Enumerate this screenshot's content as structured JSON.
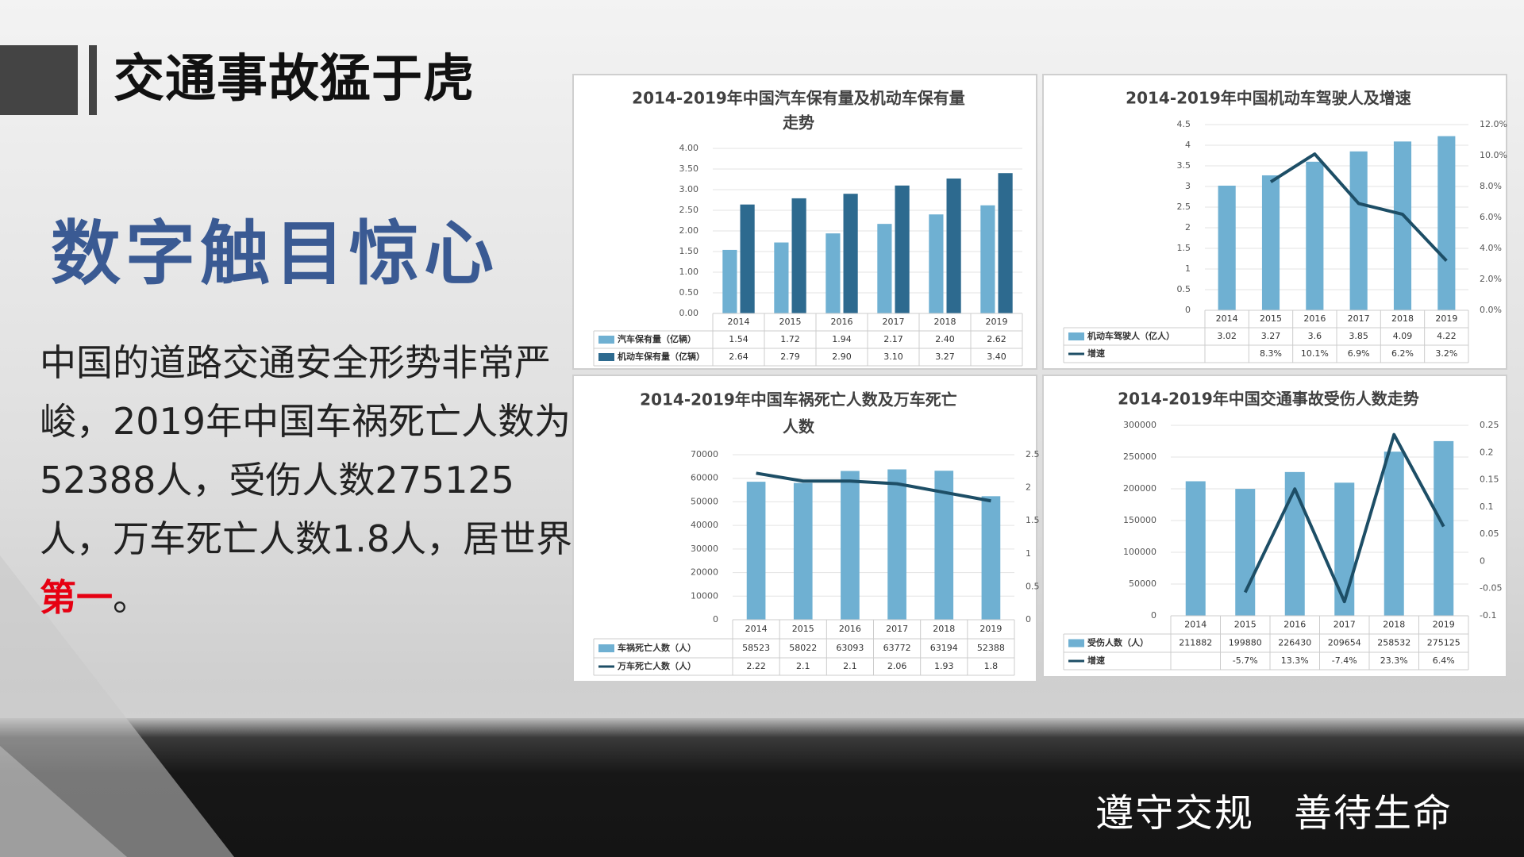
{
  "slide": {
    "title": "交通事故猛于虎",
    "subtitle": "数字触目惊心",
    "body_before": "中国的道路交通安全形势非常严峻，2019年中国车祸死亡人数为52388人，受伤人数275125人，万车死亡人数1.8人，居世界",
    "body_highlight": "第一",
    "body_after": "。",
    "footer": "遵守交规　善待生命"
  },
  "colors": {
    "bar_light": "#6fb0d2",
    "bar_dark": "#2d6a8f",
    "line": "#1d4e66",
    "highlight": "#e60012",
    "subtitle": "#3a5a93"
  },
  "chart_data": [
    {
      "type": "bar",
      "title_lines": [
        "2014-2019年中国汽车保有量及机动车保有量",
        "走势"
      ],
      "categories": [
        "2014",
        "2015",
        "2016",
        "2017",
        "2018",
        "2019"
      ],
      "series": [
        {
          "name": "汽车保有量（亿辆）",
          "values": [
            1.54,
            1.72,
            1.94,
            2.17,
            2.4,
            2.62
          ],
          "labels": [
            "1.54",
            "1.72",
            "1.94",
            "2.17",
            "2.40",
            "2.62"
          ]
        },
        {
          "name": "机动车保有量（亿辆）",
          "values": [
            2.64,
            2.79,
            2.9,
            3.1,
            3.27,
            3.4
          ],
          "labels": [
            "2.64",
            "2.79",
            "2.90",
            "3.10",
            "3.27",
            "3.40"
          ]
        }
      ],
      "ylim": [
        0,
        4
      ],
      "yticks": [
        "0.00",
        "0.50",
        "1.00",
        "1.50",
        "2.00",
        "2.50",
        "3.00",
        "3.50",
        "4.00"
      ]
    },
    {
      "type": "bar",
      "title_lines": [
        "2014-2019年中国机动车驾驶人及增速"
      ],
      "categories": [
        "2014",
        "2015",
        "2016",
        "2017",
        "2018",
        "2019"
      ],
      "series": [
        {
          "name": "机动车驾驶人（亿人）",
          "values": [
            3.02,
            3.27,
            3.6,
            3.85,
            4.09,
            4.22
          ],
          "labels": [
            "3.02",
            "3.27",
            "3.6",
            "3.85",
            "4.09",
            "4.22"
          ]
        },
        {
          "name": "增速",
          "kind": "line",
          "axis": "right",
          "values": [
            null,
            8.3,
            10.1,
            6.9,
            6.2,
            3.2
          ],
          "labels": [
            "",
            "8.3%",
            "10.1%",
            "6.9%",
            "6.2%",
            "3.2%"
          ]
        }
      ],
      "ylim": [
        0,
        4.5
      ],
      "yticks": [
        "0",
        "0.5",
        "1",
        "1.5",
        "2",
        "2.5",
        "3",
        "3.5",
        "4",
        "4.5"
      ],
      "y2lim": [
        0,
        12
      ],
      "y2ticks": [
        "0.0%",
        "2.0%",
        "4.0%",
        "6.0%",
        "8.0%",
        "10.0%",
        "12.0%"
      ]
    },
    {
      "type": "bar",
      "title_lines": [
        "2014-2019年中国车祸死亡人数及万车死亡",
        "人数"
      ],
      "categories": [
        "2014",
        "2015",
        "2016",
        "2017",
        "2018",
        "2019"
      ],
      "series": [
        {
          "name": "车祸死亡人数（人）",
          "values": [
            58523,
            58022,
            63093,
            63772,
            63194,
            52388
          ],
          "labels": [
            "58523",
            "58022",
            "63093",
            "63772",
            "63194",
            "52388"
          ]
        },
        {
          "name": "万车死亡人数（人）",
          "kind": "line",
          "axis": "right",
          "values": [
            2.22,
            2.1,
            2.1,
            2.06,
            1.93,
            1.8
          ],
          "labels": [
            "2.22",
            "2.1",
            "2.1",
            "2.06",
            "1.93",
            "1.8"
          ]
        }
      ],
      "ylim": [
        0,
        70000
      ],
      "yticks": [
        "0",
        "10000",
        "20000",
        "30000",
        "40000",
        "50000",
        "60000",
        "70000"
      ],
      "y2lim": [
        0,
        2.5
      ],
      "y2ticks": [
        "0",
        "0.5",
        "1",
        "1.5",
        "2",
        "2.5"
      ]
    },
    {
      "type": "bar",
      "title_lines": [
        "2014-2019年中国交通事故受伤人数走势"
      ],
      "categories": [
        "2014",
        "2015",
        "2016",
        "2017",
        "2018",
        "2019"
      ],
      "series": [
        {
          "name": "受伤人数（人）",
          "values": [
            211882,
            199880,
            226430,
            209654,
            258532,
            275125
          ],
          "labels": [
            "211882",
            "199880",
            "226430",
            "209654",
            "258532",
            "275125"
          ]
        },
        {
          "name": "增速",
          "kind": "line",
          "axis": "right",
          "values": [
            null,
            -0.057,
            0.133,
            -0.074,
            0.233,
            0.064
          ],
          "labels": [
            "",
            "-5.7%",
            "13.3%",
            "-7.4%",
            "23.3%",
            "6.4%"
          ]
        }
      ],
      "ylim": [
        0,
        300000
      ],
      "yticks": [
        "0",
        "50000",
        "100000",
        "150000",
        "200000",
        "250000",
        "300000"
      ],
      "y2lim": [
        -0.1,
        0.25
      ],
      "y2ticks": [
        "-0.1",
        "-0.05",
        "0",
        "0.05",
        "0.1",
        "0.15",
        "0.2",
        "0.25"
      ]
    }
  ]
}
